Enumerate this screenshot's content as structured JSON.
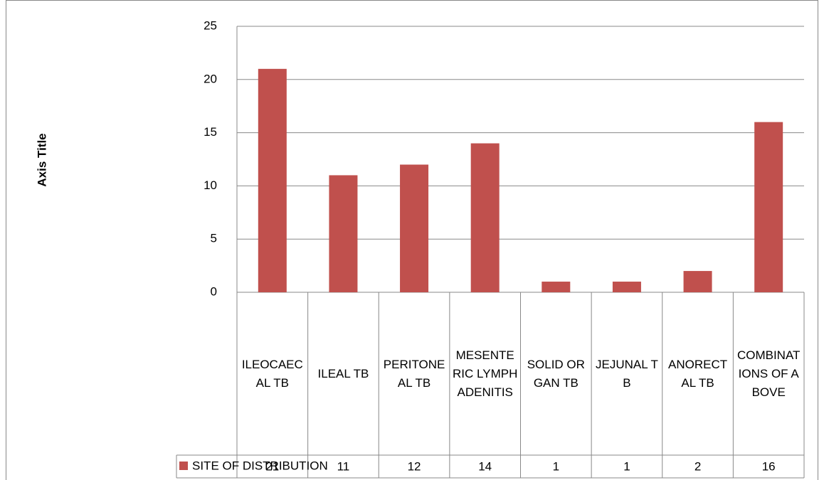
{
  "chart_data": {
    "type": "bar",
    "y_axis_title": "Axis Title",
    "categories": [
      "ILEOCAECAL TB",
      "ILEAL TB",
      "PERITONEAL TB",
      "MESENTERIC LYMPHADENITIS",
      "SOLID ORGAN TB",
      "JEJUNAL TB",
      "ANORECTAL TB",
      "COMBINATIONS OF ABOVE"
    ],
    "series": [
      {
        "name": "SITE OF DISTRIBUTION",
        "color": "#c0504d",
        "values": [
          21,
          11,
          12,
          14,
          1,
          1,
          2,
          16
        ]
      }
    ],
    "ylim": [
      0,
      25
    ],
    "yticks": [
      0,
      5,
      10,
      15,
      20,
      25
    ],
    "grid": true,
    "data_table": true
  }
}
